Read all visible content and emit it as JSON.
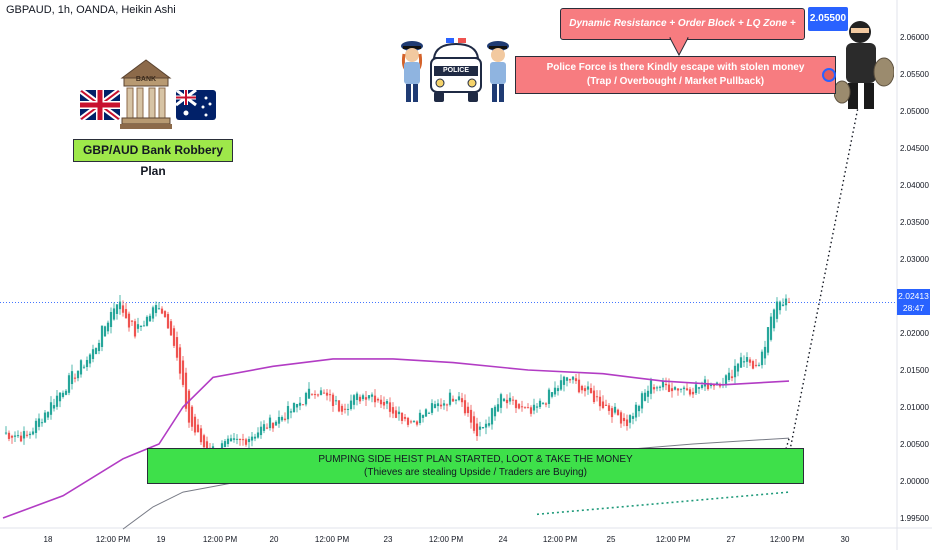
{
  "header": {
    "symbol_line": "GBPAUD, 1h, OANDA, Heikin Ashi"
  },
  "title_box": {
    "text": "GBP/AUD Bank Robbery Plan"
  },
  "bank_icon": {
    "label": "BANK"
  },
  "police_car": {
    "label": "POLICE"
  },
  "annotations": {
    "resistance": "Dynamic Resistance + Order Block + LQ Zone + Trap area",
    "target_price": "2.05500",
    "police_line1": "Police Force is there Kindly escape with stolen money",
    "police_line2": "(Trap / Overbought / Market Pullback)",
    "heist_line1": "PUMPING SIDE HEIST PLAN STARTED, LOOT & TAKE THE MONEY",
    "heist_line2": "(Thieves are stealing Upside / Traders are Buying)"
  },
  "current_price": {
    "value": "2.02413",
    "countdown": "28:47"
  },
  "colors": {
    "up": "#26a69a",
    "down": "#ef5350",
    "ma_purple": "#b23cc4",
    "ma_gray": "#787b86",
    "dotted_green": "#1f9a7a",
    "box_pink": "#f77c80",
    "box_green": "#3ee04a",
    "price_blue": "#2962ff"
  },
  "chart_data": {
    "type": "candlestick",
    "ylim": [
      1.995,
      2.065
    ],
    "y_ticks": [
      "2.06000",
      "2.05500",
      "2.05000",
      "2.04500",
      "2.04000",
      "2.03500",
      "2.03000",
      "2.02500",
      "2.02000",
      "2.01500",
      "2.01000",
      "2.00500",
      "2.00000",
      "1.99500"
    ],
    "x_ticks": [
      "18",
      "12:00 PM",
      "19",
      "12:00 PM",
      "20",
      "12:00 PM",
      "23",
      "12:00 PM",
      "24",
      "12:00 PM",
      "25",
      "12:00 PM",
      "27",
      "12:00 PM",
      "30"
    ],
    "anchors": [
      [
        0,
        2.0065
      ],
      [
        8,
        2.006
      ],
      [
        20,
        2.0125
      ],
      [
        30,
        2.0175
      ],
      [
        38,
        2.0245
      ],
      [
        44,
        2.02
      ],
      [
        52,
        2.024
      ],
      [
        56,
        2.0205
      ],
      [
        62,
        2.008
      ],
      [
        68,
        2.004
      ],
      [
        80,
        2.0055
      ],
      [
        96,
        2.0095
      ],
      [
        104,
        2.0125
      ],
      [
        112,
        2.01
      ],
      [
        122,
        2.012
      ],
      [
        136,
        2.008
      ],
      [
        152,
        2.012
      ],
      [
        158,
        2.006
      ],
      [
        166,
        2.011
      ],
      [
        176,
        2.009
      ],
      [
        188,
        2.014
      ],
      [
        198,
        2.011
      ],
      [
        208,
        2.008
      ],
      [
        216,
        2.013
      ],
      [
        230,
        2.0125
      ],
      [
        242,
        2.014
      ],
      [
        246,
        2.017
      ],
      [
        252,
        2.015
      ],
      [
        258,
        2.025
      ],
      [
        262,
        2.024
      ]
    ],
    "ma_purple": [
      [
        0,
        1.995
      ],
      [
        20,
        1.998
      ],
      [
        40,
        2.003
      ],
      [
        52,
        2.005
      ],
      [
        60,
        2.01
      ],
      [
        70,
        2.014
      ],
      [
        90,
        2.0155
      ],
      [
        110,
        2.0165
      ],
      [
        130,
        2.0165
      ],
      [
        150,
        2.016
      ],
      [
        175,
        2.015
      ],
      [
        200,
        2.0145
      ],
      [
        220,
        2.0135
      ],
      [
        240,
        2.013
      ],
      [
        262,
        2.0135
      ]
    ],
    "ma_gray": [
      [
        40,
        1.9935
      ],
      [
        50,
        1.9965
      ],
      [
        60,
        1.9985
      ],
      [
        80,
        2.0
      ],
      [
        110,
        2.001
      ],
      [
        140,
        2.002
      ],
      [
        170,
        2.003
      ],
      [
        200,
        2.004
      ],
      [
        230,
        2.005
      ],
      [
        262,
        2.0058
      ]
    ],
    "projection": [
      [
        262,
        2.024
      ],
      [
        285,
        2.0505
      ]
    ],
    "projection_start_dot": [
      262,
      2.0035
    ],
    "projection_start_dot2": [
      262,
      2.0057
    ]
  }
}
